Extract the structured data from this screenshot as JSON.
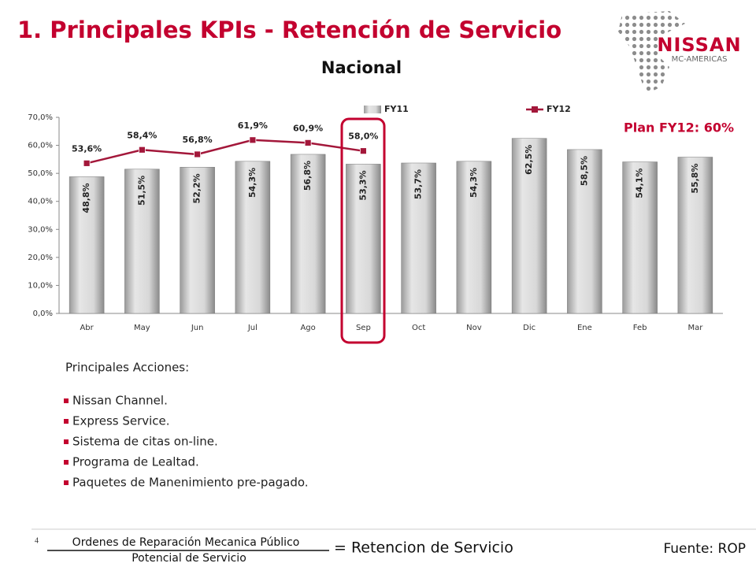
{
  "slide": {
    "title": "1. Principales KPIs - Retención de Servicio",
    "subtitle": "Nacional",
    "logo": {
      "brand": "NISSAN",
      "region": "MC-AMERICAS"
    },
    "plan": "Plan FY12: 60%",
    "actions_title": "Principales Acciones:",
    "actions": [
      "Nissan Channel.",
      "Express Service.",
      "Sistema de citas on-line.",
      "Programa de Lealtad.",
      "Paquetes de Manenimiento pre-pagado."
    ],
    "page_number": "4",
    "formula": {
      "numerator": "Ordenes de Reparación Mecanica Público",
      "denominator": "Potencial de Servicio",
      "result": "= Retencion de Servicio"
    },
    "source": "Fuente: ROP"
  },
  "chart_data": {
    "type": "bar",
    "categories": [
      "Abr",
      "May",
      "Jun",
      "Jul",
      "Ago",
      "Sep",
      "Oct",
      "Nov",
      "Dic",
      "Ene",
      "Feb",
      "Mar"
    ],
    "series": [
      {
        "name": "FY11",
        "type": "bar",
        "color": "#c8c8c8",
        "values": [
          48.8,
          51.5,
          52.2,
          54.3,
          56.8,
          53.3,
          53.7,
          54.3,
          62.5,
          58.5,
          54.1,
          55.8
        ],
        "value_labels": [
          "48,8%",
          "51,5%",
          "52,2%",
          "54,3%",
          "56,8%",
          "53,3%",
          "53,7%",
          "54,3%",
          "62,5%",
          "58,5%",
          "54,1%",
          "55,8%"
        ]
      },
      {
        "name": "FY12",
        "type": "line",
        "color": "#a3173a",
        "values": [
          53.6,
          58.4,
          56.8,
          61.9,
          60.9,
          58.0,
          null,
          null,
          null,
          null,
          null,
          null
        ],
        "value_labels": [
          "53,6%",
          "58,4%",
          "56,8%",
          "61,9%",
          "60,9%",
          "58,0%",
          null,
          null,
          null,
          null,
          null,
          null
        ]
      }
    ],
    "ylim": [
      0,
      70
    ],
    "yticks": [
      {
        "value": 0,
        "label": "0,0%"
      },
      {
        "value": 10,
        "label": "10,0%"
      },
      {
        "value": 20,
        "label": "20,0%"
      },
      {
        "value": 30,
        "label": "30,0%"
      },
      {
        "value": 40,
        "label": "40,0%"
      },
      {
        "value": 50,
        "label": "50,0%"
      },
      {
        "value": 60,
        "label": "60,0%"
      },
      {
        "value": 70,
        "label": "70,0%"
      }
    ],
    "legend": "top"
  }
}
